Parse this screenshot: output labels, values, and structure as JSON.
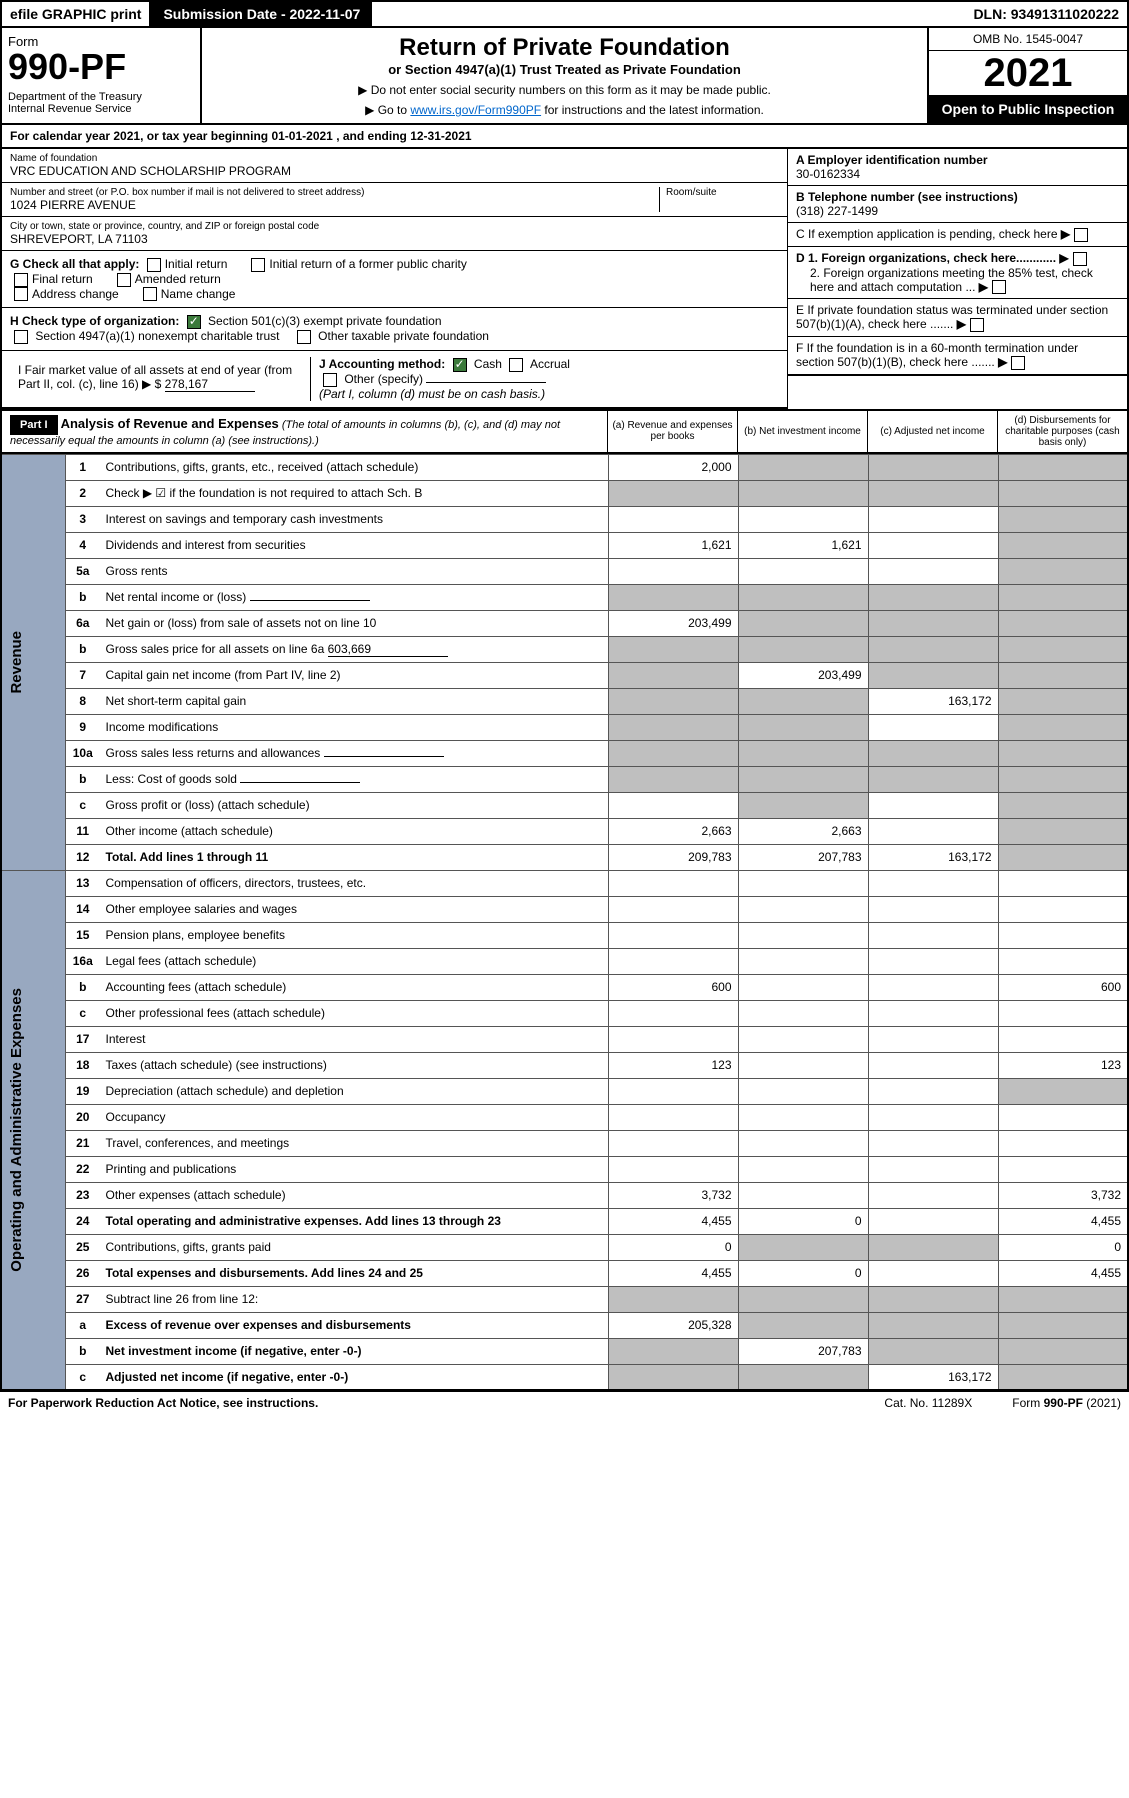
{
  "topbar": {
    "efile": "efile GRAPHIC print",
    "subdate_label": "Submission Date - 2022-11-07",
    "dln": "DLN: 93491311020222"
  },
  "header": {
    "form_word": "Form",
    "form_no": "990-PF",
    "dept": "Department of the Treasury",
    "irs": "Internal Revenue Service",
    "title": "Return of Private Foundation",
    "subtitle": "or Section 4947(a)(1) Trust Treated as Private Foundation",
    "note1": "▶ Do not enter social security numbers on this form as it may be made public.",
    "note2_pre": "▶ Go to ",
    "note2_link": "www.irs.gov/Form990PF",
    "note2_post": " for instructions and the latest information.",
    "omb": "OMB No. 1545-0047",
    "year": "2021",
    "open": "Open to Public Inspection"
  },
  "calyear": {
    "text_pre": "For calendar year 2021, or tax year beginning ",
    "begin": "01-01-2021",
    "text_mid": " , and ending ",
    "end": "12-31-2021"
  },
  "id": {
    "name_lbl": "Name of foundation",
    "name": "VRC EDUCATION AND SCHOLARSHIP PROGRAM",
    "addr_lbl": "Number and street (or P.O. box number if mail is not delivered to street address)",
    "addr": "1024 PIERRE AVENUE",
    "room_lbl": "Room/suite",
    "city_lbl": "City or town, state or province, country, and ZIP or foreign postal code",
    "city": "SHREVEPORT, LA  71103",
    "ein_lbl": "A Employer identification number",
    "ein": "30-0162334",
    "phone_lbl": "B Telephone number (see instructions)",
    "phone": "(318) 227-1499",
    "c_lbl": "C If exemption application is pending, check here",
    "d1": "D 1. Foreign organizations, check here............",
    "d2": "2. Foreign organizations meeting the 85% test, check here and attach computation ...",
    "e_lbl": "E  If private foundation status was terminated under section 507(b)(1)(A), check here .......",
    "f_lbl": "F  If the foundation is in a 60-month termination under section 507(b)(1)(B), check here .......",
    "g_lbl": "G Check all that apply:",
    "g_opts": [
      "Initial return",
      "Initial return of a former public charity",
      "Final return",
      "Amended return",
      "Address change",
      "Name change"
    ],
    "h_lbl": "H Check type of organization:",
    "h_opts": [
      "Section 501(c)(3) exempt private foundation",
      "Section 4947(a)(1) nonexempt charitable trust",
      "Other taxable private foundation"
    ],
    "i_lbl": "I Fair market value of all assets at end of year (from Part II, col. (c), line 16) ▶ $",
    "i_val": "278,167",
    "j_lbl": "J Accounting method:",
    "j_opts": [
      "Cash",
      "Accrual",
      "Other (specify)"
    ],
    "j_note": "(Part I, column (d) must be on cash basis.)"
  },
  "part1": {
    "tag": "Part I",
    "title": "Analysis of Revenue and Expenses",
    "title_note": "(The total of amounts in columns (b), (c), and (d) may not necessarily equal the amounts in column (a) (see instructions).)",
    "col_a": "(a)  Revenue and expenses per books",
    "col_b": "(b)  Net investment income",
    "col_c": "(c)  Adjusted net income",
    "col_d": "(d)  Disbursements for charitable purposes (cash basis only)"
  },
  "sidelabels": {
    "rev": "Revenue",
    "exp": "Operating and Administrative Expenses"
  },
  "lines": [
    {
      "n": "1",
      "lbl": "Contributions, gifts, grants, etc., received (attach schedule)",
      "a": "2,000",
      "b": "",
      "c": "",
      "d": "",
      "shade": [
        "b",
        "c",
        "d"
      ]
    },
    {
      "n": "2",
      "lbl": "Check ▶ ☑ if the foundation is not required to attach Sch. B",
      "a": "",
      "b": "",
      "c": "",
      "d": "",
      "shade": [
        "a",
        "b",
        "c",
        "d"
      ],
      "bold_not": true
    },
    {
      "n": "3",
      "lbl": "Interest on savings and temporary cash investments",
      "a": "",
      "b": "",
      "c": "",
      "d": "",
      "shade": [
        "d"
      ]
    },
    {
      "n": "4",
      "lbl": "Dividends and interest from securities",
      "a": "1,621",
      "b": "1,621",
      "c": "",
      "d": "",
      "shade": [
        "d"
      ]
    },
    {
      "n": "5a",
      "lbl": "Gross rents",
      "a": "",
      "b": "",
      "c": "",
      "d": "",
      "shade": [
        "d"
      ]
    },
    {
      "n": "b",
      "lbl": "Net rental income or (loss)",
      "a": "",
      "b": "",
      "c": "",
      "d": "",
      "shade": [
        "a",
        "b",
        "c",
        "d"
      ],
      "inline": true
    },
    {
      "n": "6a",
      "lbl": "Net gain or (loss) from sale of assets not on line 10",
      "a": "203,499",
      "b": "",
      "c": "",
      "d": "",
      "shade": [
        "b",
        "c",
        "d"
      ]
    },
    {
      "n": "b",
      "lbl": "Gross sales price for all assets on line 6a",
      "a": "",
      "b": "",
      "c": "",
      "d": "",
      "shade": [
        "a",
        "b",
        "c",
        "d"
      ],
      "inline": true,
      "inline_val": "603,669"
    },
    {
      "n": "7",
      "lbl": "Capital gain net income (from Part IV, line 2)",
      "a": "",
      "b": "203,499",
      "c": "",
      "d": "",
      "shade": [
        "a",
        "c",
        "d"
      ]
    },
    {
      "n": "8",
      "lbl": "Net short-term capital gain",
      "a": "",
      "b": "",
      "c": "163,172",
      "d": "",
      "shade": [
        "a",
        "b",
        "d"
      ]
    },
    {
      "n": "9",
      "lbl": "Income modifications",
      "a": "",
      "b": "",
      "c": "",
      "d": "",
      "shade": [
        "a",
        "b",
        "d"
      ]
    },
    {
      "n": "10a",
      "lbl": "Gross sales less returns and allowances",
      "a": "",
      "b": "",
      "c": "",
      "d": "",
      "shade": [
        "a",
        "b",
        "c",
        "d"
      ],
      "inline": true
    },
    {
      "n": "b",
      "lbl": "Less: Cost of goods sold",
      "a": "",
      "b": "",
      "c": "",
      "d": "",
      "shade": [
        "a",
        "b",
        "c",
        "d"
      ],
      "inline": true
    },
    {
      "n": "c",
      "lbl": "Gross profit or (loss) (attach schedule)",
      "a": "",
      "b": "",
      "c": "",
      "d": "",
      "shade": [
        "b",
        "d"
      ]
    },
    {
      "n": "11",
      "lbl": "Other income (attach schedule)",
      "a": "2,663",
      "b": "2,663",
      "c": "",
      "d": "",
      "shade": [
        "d"
      ]
    },
    {
      "n": "12",
      "lbl": "Total. Add lines 1 through 11",
      "a": "209,783",
      "b": "207,783",
      "c": "163,172",
      "d": "",
      "shade": [
        "d"
      ],
      "bold": true
    },
    {
      "n": "13",
      "lbl": "Compensation of officers, directors, trustees, etc.",
      "a": "",
      "b": "",
      "c": "",
      "d": ""
    },
    {
      "n": "14",
      "lbl": "Other employee salaries and wages",
      "a": "",
      "b": "",
      "c": "",
      "d": ""
    },
    {
      "n": "15",
      "lbl": "Pension plans, employee benefits",
      "a": "",
      "b": "",
      "c": "",
      "d": ""
    },
    {
      "n": "16a",
      "lbl": "Legal fees (attach schedule)",
      "a": "",
      "b": "",
      "c": "",
      "d": ""
    },
    {
      "n": "b",
      "lbl": "Accounting fees (attach schedule)",
      "a": "600",
      "b": "",
      "c": "",
      "d": "600"
    },
    {
      "n": "c",
      "lbl": "Other professional fees (attach schedule)",
      "a": "",
      "b": "",
      "c": "",
      "d": ""
    },
    {
      "n": "17",
      "lbl": "Interest",
      "a": "",
      "b": "",
      "c": "",
      "d": ""
    },
    {
      "n": "18",
      "lbl": "Taxes (attach schedule) (see instructions)",
      "a": "123",
      "b": "",
      "c": "",
      "d": "123"
    },
    {
      "n": "19",
      "lbl": "Depreciation (attach schedule) and depletion",
      "a": "",
      "b": "",
      "c": "",
      "d": "",
      "shade": [
        "d"
      ]
    },
    {
      "n": "20",
      "lbl": "Occupancy",
      "a": "",
      "b": "",
      "c": "",
      "d": ""
    },
    {
      "n": "21",
      "lbl": "Travel, conferences, and meetings",
      "a": "",
      "b": "",
      "c": "",
      "d": ""
    },
    {
      "n": "22",
      "lbl": "Printing and publications",
      "a": "",
      "b": "",
      "c": "",
      "d": ""
    },
    {
      "n": "23",
      "lbl": "Other expenses (attach schedule)",
      "a": "3,732",
      "b": "",
      "c": "",
      "d": "3,732"
    },
    {
      "n": "24",
      "lbl": "Total operating and administrative expenses. Add lines 13 through 23",
      "a": "4,455",
      "b": "0",
      "c": "",
      "d": "4,455",
      "bold": true
    },
    {
      "n": "25",
      "lbl": "Contributions, gifts, grants paid",
      "a": "0",
      "b": "",
      "c": "",
      "d": "0",
      "shade": [
        "b",
        "c"
      ]
    },
    {
      "n": "26",
      "lbl": "Total expenses and disbursements. Add lines 24 and 25",
      "a": "4,455",
      "b": "0",
      "c": "",
      "d": "4,455",
      "bold": true
    },
    {
      "n": "27",
      "lbl": "Subtract line 26 from line 12:",
      "a": "",
      "b": "",
      "c": "",
      "d": "",
      "shade": [
        "a",
        "b",
        "c",
        "d"
      ]
    },
    {
      "n": "a",
      "lbl": "Excess of revenue over expenses and disbursements",
      "a": "205,328",
      "b": "",
      "c": "",
      "d": "",
      "shade": [
        "b",
        "c",
        "d"
      ],
      "bold": true
    },
    {
      "n": "b",
      "lbl": "Net investment income (if negative, enter -0-)",
      "a": "",
      "b": "207,783",
      "c": "",
      "d": "",
      "shade": [
        "a",
        "c",
        "d"
      ],
      "bold": true
    },
    {
      "n": "c",
      "lbl": "Adjusted net income (if negative, enter -0-)",
      "a": "",
      "b": "",
      "c": "163,172",
      "d": "",
      "shade": [
        "a",
        "b",
        "d"
      ],
      "bold": true
    }
  ],
  "footer": {
    "left": "For Paperwork Reduction Act Notice, see instructions.",
    "mid": "Cat. No. 11289X",
    "right": "Form 990-PF (2021)"
  },
  "colors": {
    "black": "#000000",
    "white": "#ffffff",
    "shade": "#bfbfbf",
    "side": "#98a8c0",
    "link": "#0066cc",
    "check": "#3b7a3b"
  }
}
